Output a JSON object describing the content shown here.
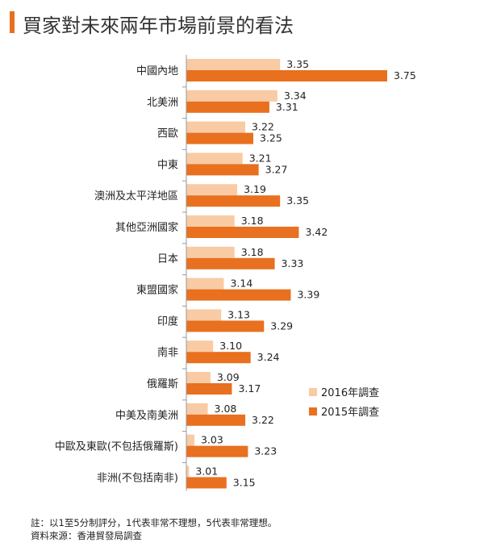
{
  "title": "買家對未來兩年市場前景的看法",
  "colors": {
    "accent": "#e8701f",
    "s2016": "#f8cba4",
    "s2015": "#e8701f",
    "axis": "#999999",
    "text": "#222222"
  },
  "chart_data": {
    "type": "bar",
    "orientation": "horizontal",
    "title": "",
    "xlabel": "",
    "ylabel": "",
    "xlim": [
      3.0,
      3.8
    ],
    "grid": false,
    "legend_position": "bottom-right",
    "categories": [
      "中國內地",
      "北美洲",
      "西歐",
      "中東",
      "澳洲及太平洋地區",
      "其他亞洲國家",
      "日本",
      "東盟國家",
      "印度",
      "南非",
      "俄羅斯",
      "中美及南美洲",
      "中歐及東歐(不包括俄羅斯)",
      "非洲(不包括南非)"
    ],
    "series": [
      {
        "name": "2016年調查",
        "color": "#f8cba4",
        "values": [
          3.35,
          3.34,
          3.22,
          3.21,
          3.19,
          3.18,
          3.18,
          3.14,
          3.13,
          3.1,
          3.09,
          3.08,
          3.03,
          3.01
        ],
        "labels": [
          "3.35",
          "3.34",
          "3.22",
          "3.21",
          "3.19",
          "3.18",
          "3.18",
          "3.14",
          "3.13",
          "3.10",
          "3.09",
          "3.08",
          "3.03",
          "3.01"
        ]
      },
      {
        "name": "2015年調查",
        "color": "#e8701f",
        "values": [
          3.75,
          3.31,
          3.25,
          3.27,
          3.35,
          3.42,
          3.33,
          3.39,
          3.29,
          3.24,
          3.17,
          3.22,
          3.23,
          3.15
        ],
        "labels": [
          "3.75",
          "3.31",
          "3.25",
          "3.27",
          "3.35",
          "3.42",
          "3.33",
          "3.39",
          "3.29",
          "3.24",
          "3.17",
          "3.22",
          "3.23",
          "3.15"
        ]
      }
    ]
  },
  "notes": {
    "line1": "註：以1至5分制評分，1代表非常不理想，5代表非常理想。",
    "line2": "資料來源：香港貿發局調查"
  }
}
